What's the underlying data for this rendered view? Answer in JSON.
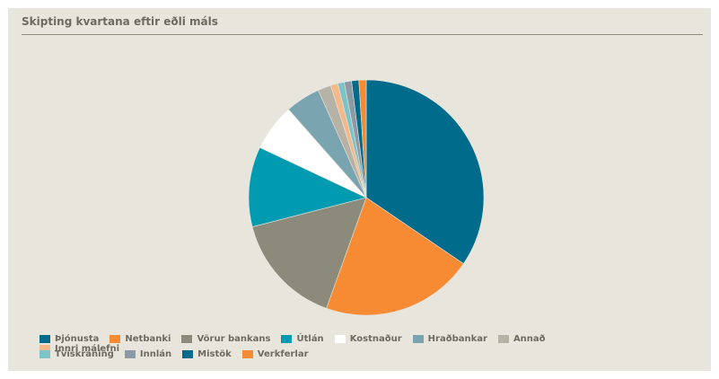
{
  "header": {
    "title": "Skipting kvartana eftir eðli máls"
  },
  "chart_data": {
    "type": "pie",
    "start_angle_deg": 90,
    "direction": "clockwise",
    "series": [
      {
        "name": "Þjónusta",
        "value": 34.5,
        "color": "#006b8a"
      },
      {
        "name": "Netbanki",
        "value": 21.0,
        "color": "#f68b33"
      },
      {
        "name": "Vörur bankans",
        "value": 15.5,
        "color": "#8c8a7a"
      },
      {
        "name": "Útlán",
        "value": 11.0,
        "color": "#009bb0"
      },
      {
        "name": "Kostnaður",
        "value": 6.5,
        "color": "#ffffff"
      },
      {
        "name": "Hraðbankar",
        "value": 4.8,
        "color": "#7aa4b0"
      },
      {
        "name": "Annað",
        "value": 1.8,
        "color": "#b7b2a6"
      },
      {
        "name": "Innri málefni",
        "value": 1.0,
        "color": "#f3b98b"
      },
      {
        "name": "Tvískráning",
        "value": 0.9,
        "color": "#7cc4c8"
      },
      {
        "name": "Innlán",
        "value": 1.0,
        "color": "#8c9aa8"
      },
      {
        "name": "Mistök",
        "value": 1.0,
        "color": "#006b8a"
      },
      {
        "name": "Verkferlar",
        "value": 1.0,
        "color": "#f68b33"
      }
    ],
    "legend_placement": "bottom",
    "legend_rows": [
      [
        "Þjónusta",
        "Netbanki",
        "Vörur bankans",
        "Útlán",
        "Kostnaður",
        "Hraðbankar",
        "Annað",
        "Innri málefni"
      ],
      [
        "Tvískráning",
        "Innlán",
        "Mistök",
        "Verkferlar"
      ]
    ]
  }
}
